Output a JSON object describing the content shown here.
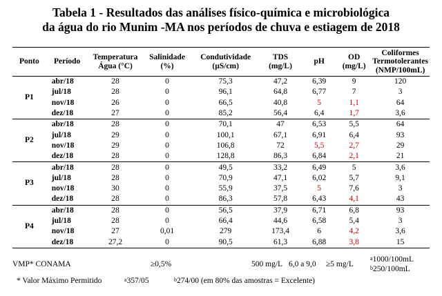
{
  "title": {
    "line1": "Tabela 1 - Resultados das análises físico-química e microbiológica",
    "line2": "da água do rio Munim -MA nos períodos de chuva e estiagem de 2018"
  },
  "headers": {
    "ponto": "Ponto",
    "periodo": "Período",
    "temp_1": "Temperatura",
    "temp_2": "Água (°C)",
    "sal_1": "Salinidade",
    "sal_2": "(%)",
    "cond_1": "Condutividade",
    "cond_2": "(µS/cm)",
    "tds_1": "TDS",
    "tds_2": "(mg/L)",
    "ph": "pH",
    "od_1": "OD",
    "od_2": "(mg/L)",
    "coli_1": "Coliformes",
    "coli_2": "Termotolerantes",
    "coli_3": "(NMP/100mL)"
  },
  "points": [
    {
      "name": "P1",
      "rows": [
        {
          "period": "abr/18",
          "temp": "28",
          "sal": "0",
          "cond": "75,3",
          "tds": "47,2",
          "ph": "6,39",
          "od": "9",
          "coli": "120",
          "ph_red": false,
          "od_red": false
        },
        {
          "period": "jul/18",
          "temp": "28",
          "sal": "0",
          "cond": "96,1",
          "tds": "64,8",
          "ph": "6,77",
          "od": "7",
          "coli": "3",
          "ph_red": false,
          "od_red": false
        },
        {
          "period": "nov/18",
          "temp": "26",
          "sal": "0",
          "cond": "66,5",
          "tds": "40,8",
          "ph": "5",
          "od": "1,1",
          "coli": "64",
          "ph_red": true,
          "od_red": true
        },
        {
          "period": "dez/18",
          "temp": "27",
          "sal": "0",
          "cond": "85,2",
          "tds": "56,4",
          "ph": "6,4",
          "od": "1,7",
          "coli": "3,6",
          "ph_red": false,
          "od_red": true
        }
      ]
    },
    {
      "name": "P2",
      "rows": [
        {
          "period": "abr/18",
          "temp": "28",
          "sal": "0",
          "cond": "70,1",
          "tds": "47",
          "ph": "6,53",
          "od": "5,5",
          "coli": "64",
          "ph_red": false,
          "od_red": false
        },
        {
          "period": "jul/18",
          "temp": "29",
          "sal": "0",
          "cond": "100,1",
          "tds": "67,1",
          "ph": "6,91",
          "od": "6,4",
          "coli": "93",
          "ph_red": false,
          "od_red": false
        },
        {
          "period": "nov/18",
          "temp": "29",
          "sal": "0",
          "cond": "106,8",
          "tds": "72",
          "ph": "5,5",
          "od": "2,7",
          "coli": "29",
          "ph_red": true,
          "od_red": true
        },
        {
          "period": "dez/18",
          "temp": "28",
          "sal": "0",
          "cond": "128,8",
          "tds": "86,3",
          "ph": "6,84",
          "od": "2,1",
          "coli": "21",
          "ph_red": false,
          "od_red": true
        }
      ]
    },
    {
      "name": "P3",
      "rows": [
        {
          "period": "abr/18",
          "temp": "28",
          "sal": "0",
          "cond": "49,5",
          "tds": "33,2",
          "ph": "6,49",
          "od": "5",
          "coli": "3,6",
          "ph_red": false,
          "od_red": false
        },
        {
          "period": "jul/18",
          "temp": "28",
          "sal": "0",
          "cond": "70,9",
          "tds": "47,1",
          "ph": "6,02",
          "od": "5,7",
          "coli": "9,1",
          "ph_red": false,
          "od_red": false
        },
        {
          "period": "nov/18",
          "temp": "30",
          "sal": "0",
          "cond": "55,9",
          "tds": "37,5",
          "ph": "5",
          "od": "7,6",
          "coli": "3",
          "ph_red": true,
          "od_red": false
        },
        {
          "period": "dez/18",
          "temp": "28",
          "sal": "0",
          "cond": "86,3",
          "tds": "57,8",
          "ph": "6,43",
          "od": "4,1",
          "coli": "43",
          "ph_red": false,
          "od_red": true
        }
      ]
    },
    {
      "name": "P4",
      "rows": [
        {
          "period": "abr/18",
          "temp": "28",
          "sal": "0",
          "cond": "56,5",
          "tds": "37,9",
          "ph": "6,71",
          "od": "6,8",
          "coli": "93",
          "ph_red": false,
          "od_red": false
        },
        {
          "period": "jul/18",
          "temp": "28",
          "sal": "0",
          "cond": "66,4",
          "tds": "44,6",
          "ph": "6,58",
          "od": "5,4",
          "coli": "3",
          "ph_red": false,
          "od_red": false
        },
        {
          "period": "nov/18",
          "temp": "27",
          "sal": "0,01",
          "cond": "279",
          "tds": "173,4",
          "ph": "6",
          "od": "4,2",
          "coli": "3,6",
          "ph_red": false,
          "od_red": true
        },
        {
          "period": "dez/18",
          "temp": "27,2",
          "sal": "0",
          "cond": "90,5",
          "tds": "61,3",
          "ph": "6,88",
          "od": "3,8",
          "coli": "15",
          "ph_red": false,
          "od_red": true
        }
      ]
    }
  ],
  "footer": {
    "vmp_label": "VMP* CONAMA",
    "sal_vmp": "≥0,5%",
    "tds_vmp": "500 mg/L",
    "ph_vmp": "6,0 a 9,0",
    "od_vmp": "≥5 mg/L",
    "coli_vmp_a_sup": "a",
    "coli_vmp_a": "1000/100mL",
    "coli_vmp_b_sup": "b",
    "coli_vmp_b": "250/100mL",
    "note": "* Valor Máximo Permitido",
    "note_a_sup": "a",
    "note_a": "357/05",
    "note_b_sup": "b",
    "note_b": "274/00 (em 80% das amostras = Excelente)"
  },
  "colors": {
    "exceed": "#d10000",
    "text": "#000000"
  }
}
